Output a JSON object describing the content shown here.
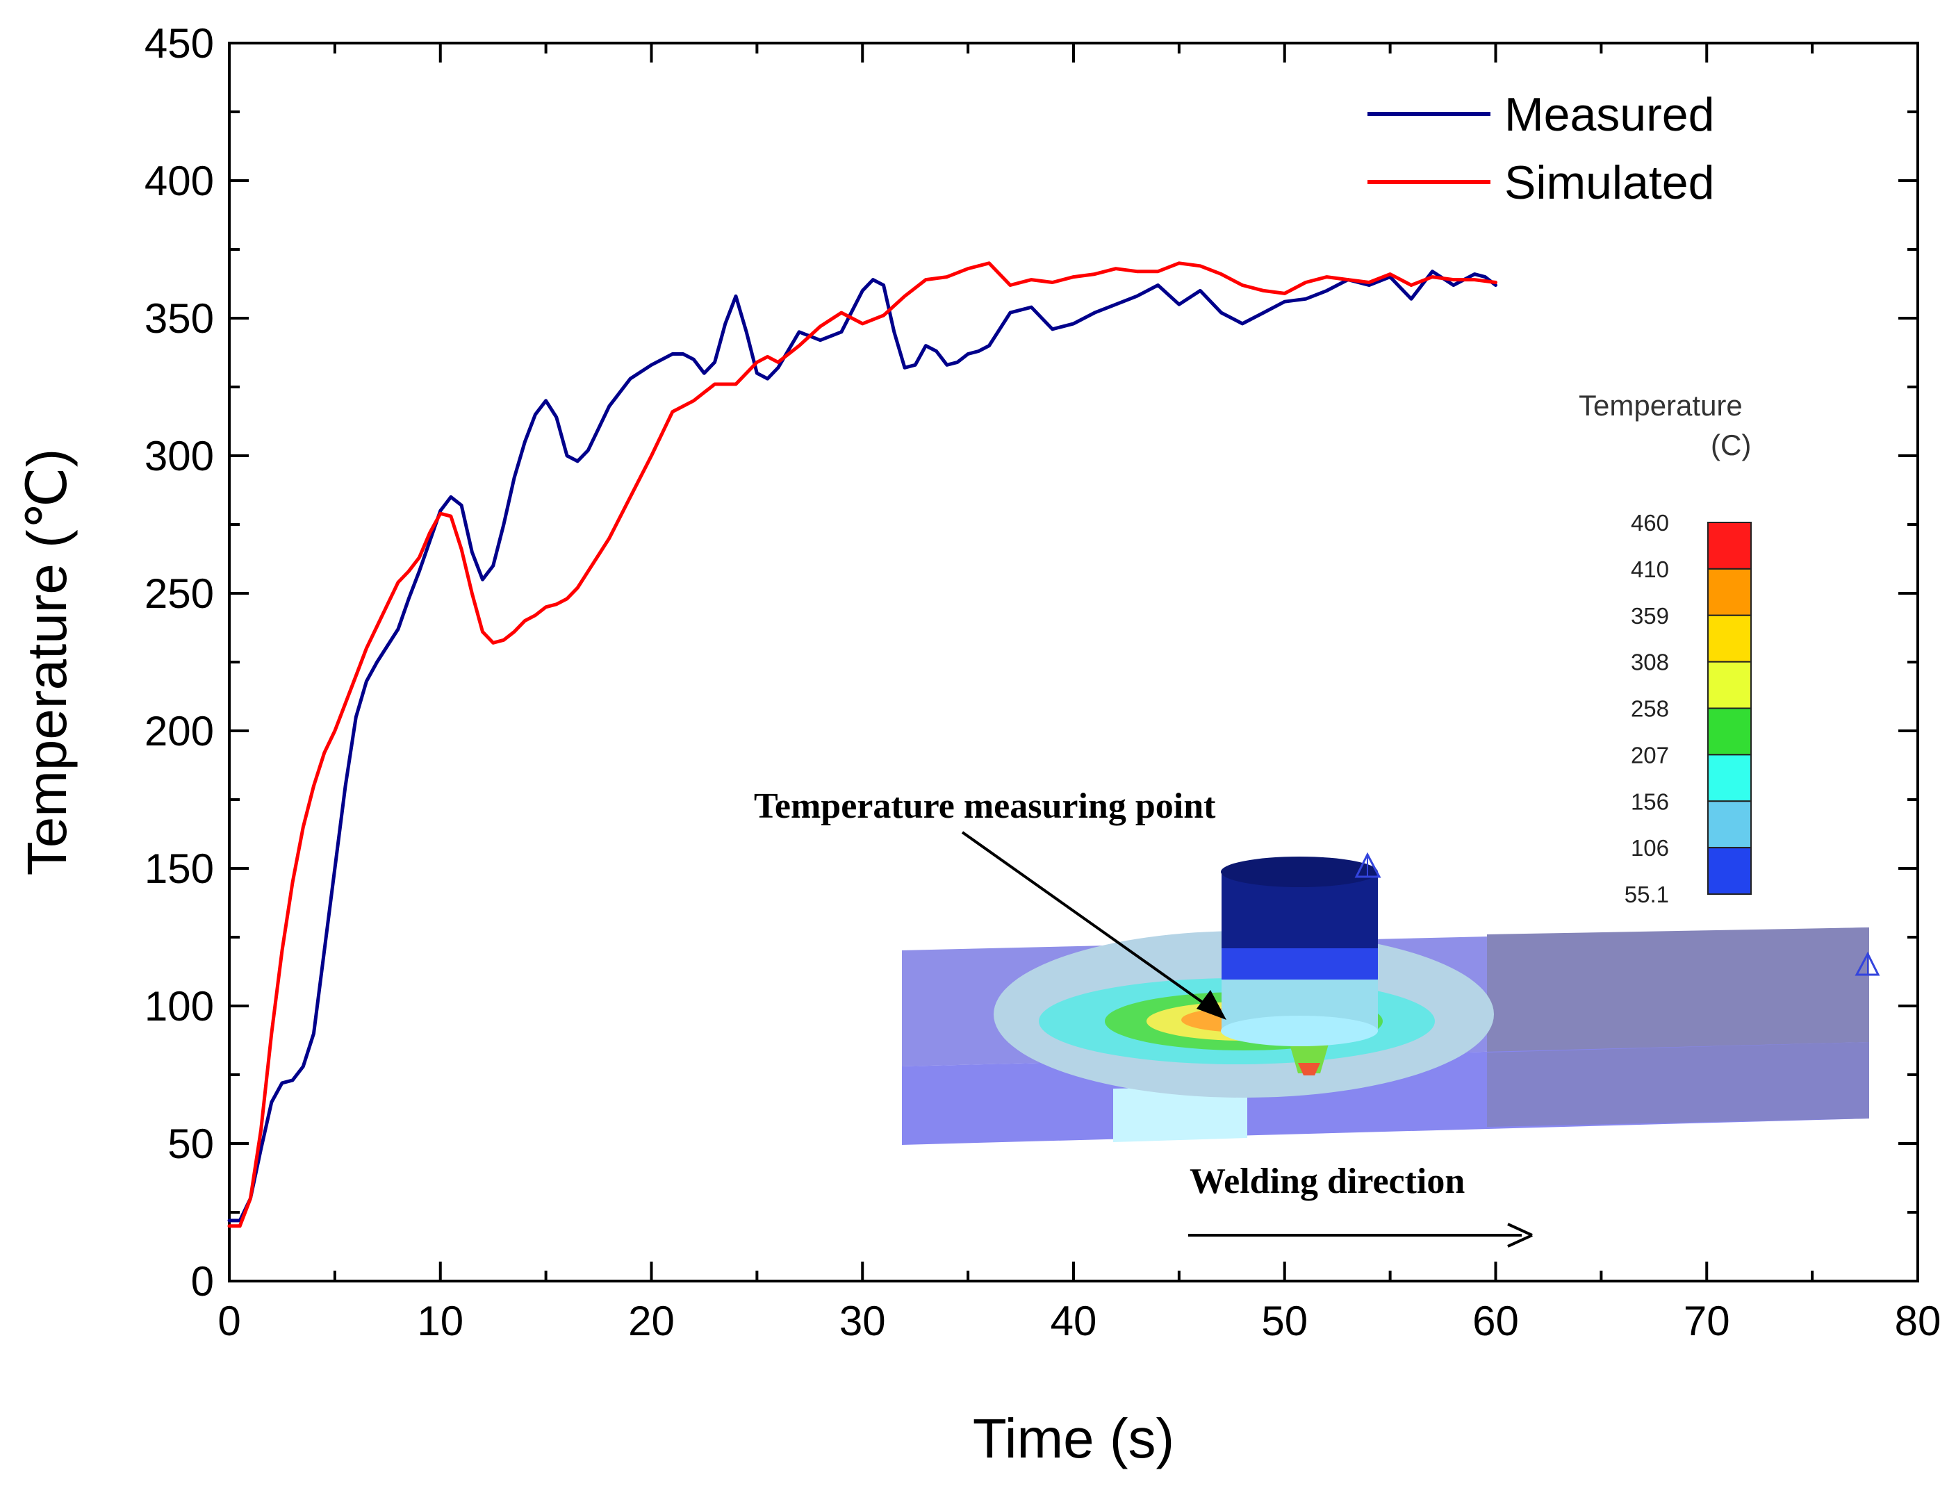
{
  "chart_data": {
    "type": "line",
    "xlabel": "Time (s)",
    "ylabel": "Temperature (℃)",
    "xlim": [
      0,
      80
    ],
    "ylim": [
      0,
      450
    ],
    "xticks": [
      0,
      10,
      20,
      30,
      40,
      50,
      60,
      70,
      80
    ],
    "yticks": [
      0,
      50,
      100,
      150,
      200,
      250,
      300,
      350,
      400,
      450
    ],
    "grid": false,
    "legend_position": "top-right",
    "series": [
      {
        "name": "Measured",
        "color": "#00008b",
        "x": [
          0,
          0.5,
          1,
          1.5,
          2,
          2.5,
          3,
          3.5,
          4,
          4.5,
          5,
          5.5,
          6,
          6.5,
          7,
          8,
          8.5,
          9,
          10,
          10.5,
          11,
          11.5,
          12,
          12.5,
          13,
          13.5,
          14,
          14.5,
          15,
          15.5,
          16,
          16.5,
          17,
          17.5,
          18,
          19,
          20,
          21,
          21.5,
          22,
          22.5,
          23,
          23.5,
          24,
          24.5,
          25,
          25.5,
          26,
          27,
          28,
          29,
          30,
          30.5,
          31,
          31.5,
          32,
          32.5,
          33,
          33.5,
          34,
          34.5,
          35,
          35.5,
          36,
          37,
          38,
          39,
          40,
          41,
          42,
          43,
          44,
          45,
          46,
          47,
          48,
          48.5,
          49,
          50,
          51,
          52,
          53,
          54,
          55,
          56,
          57,
          58,
          59,
          59.5,
          60
        ],
        "values": [
          22,
          22,
          30,
          48,
          65,
          72,
          73,
          78,
          90,
          120,
          150,
          180,
          205,
          218,
          225,
          237,
          248,
          258,
          280,
          285,
          282,
          265,
          255,
          260,
          275,
          292,
          305,
          315,
          320,
          314,
          300,
          298,
          302,
          310,
          318,
          328,
          333,
          337,
          337,
          335,
          330,
          334,
          348,
          358,
          345,
          330,
          328,
          332,
          345,
          342,
          345,
          360,
          364,
          362,
          345,
          332,
          333,
          340,
          338,
          333,
          334,
          337,
          338,
          340,
          352,
          354,
          346,
          348,
          352,
          355,
          358,
          362,
          355,
          360,
          352,
          348,
          350,
          352,
          356,
          357,
          360,
          364,
          362,
          365,
          357,
          367,
          362,
          366,
          365,
          362
        ]
      },
      {
        "name": "Simulated",
        "color": "#ff0000",
        "x": [
          0,
          0.5,
          1,
          1.5,
          2,
          2.5,
          3,
          3.5,
          4,
          4.5,
          5,
          5.5,
          6,
          6.5,
          7,
          7.5,
          8,
          8.5,
          9,
          9.5,
          10,
          10.5,
          11,
          11.5,
          12,
          12.5,
          13,
          13.5,
          14,
          14.5,
          15,
          15.5,
          16,
          16.5,
          17,
          17.5,
          18,
          19,
          20,
          21,
          22,
          23,
          24,
          25,
          25.5,
          26,
          27,
          28,
          29,
          30,
          31,
          32,
          33,
          34,
          35,
          36,
          37,
          38,
          39,
          40,
          41,
          42,
          43,
          44,
          45,
          46,
          47,
          48,
          49,
          50,
          51,
          52,
          53,
          54,
          55,
          56,
          57,
          58,
          59,
          60
        ],
        "values": [
          20,
          20,
          30,
          55,
          90,
          120,
          145,
          165,
          180,
          192,
          200,
          210,
          220,
          230,
          238,
          246,
          254,
          258,
          263,
          272,
          279,
          278,
          266,
          250,
          236,
          232,
          233,
          236,
          240,
          242,
          245,
          246,
          248,
          252,
          258,
          264,
          270,
          285,
          300,
          316,
          320,
          326,
          326,
          334,
          336,
          334,
          340,
          347,
          352,
          348,
          351,
          358,
          364,
          365,
          368,
          370,
          362,
          364,
          363,
          365,
          366,
          368,
          367,
          367,
          370,
          369,
          366,
          362,
          360,
          359,
          363,
          365,
          364,
          363,
          366,
          362,
          365,
          364,
          364,
          363
        ]
      }
    ]
  },
  "inset": {
    "callout": "Temperature measuring point",
    "direction": "Welding direction",
    "colorbar": {
      "title_line1": "Temperature",
      "title_line2": "(C)",
      "labels": [
        "460",
        "410",
        "359",
        "308",
        "258",
        "207",
        "156",
        "106",
        "55.1"
      ],
      "colors": [
        "#ff1a1a",
        "#ff9900",
        "#ffdd00",
        "#e8ff33",
        "#33dd33",
        "#33ffee",
        "#66ccee",
        "#2244ee",
        "#0a1a80"
      ]
    }
  }
}
